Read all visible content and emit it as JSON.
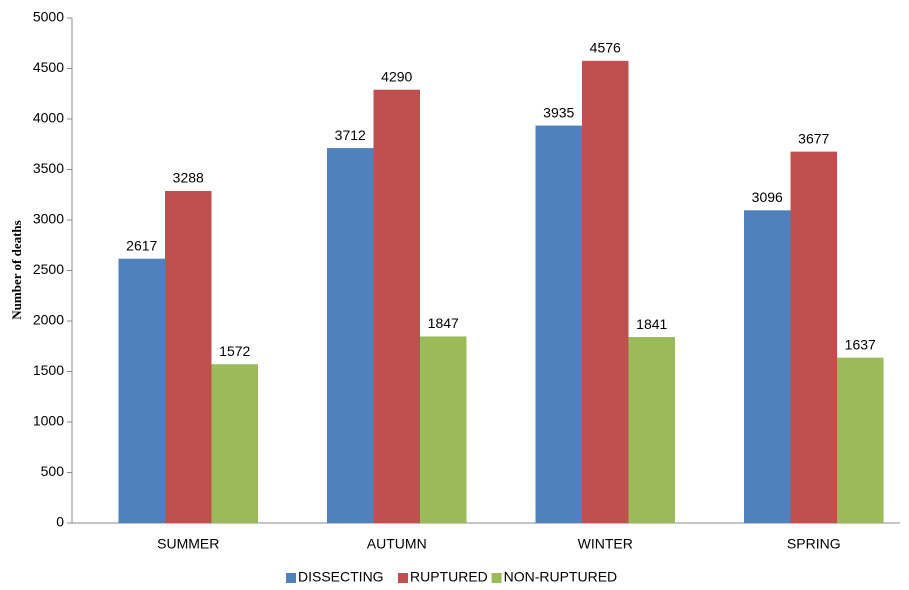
{
  "chart_data": {
    "type": "bar",
    "y_label": "Number of deaths",
    "categories": [
      "SUMMER",
      "AUTUMN",
      "WINTER",
      "SPRING"
    ],
    "series": [
      {
        "name": "DISSECTING",
        "color": "#4f81bd",
        "values": [
          2617,
          3712,
          3935,
          3096
        ]
      },
      {
        "name": "RUPTURED",
        "color": "#c0504d",
        "values": [
          3288,
          4290,
          4576,
          3677
        ]
      },
      {
        "name": "NON-RUPTURED",
        "color": "#9bbb59",
        "values": [
          1572,
          1847,
          1841,
          1637
        ]
      }
    ],
    "ylim": [
      0,
      5000
    ],
    "yticks": [
      0,
      500,
      1000,
      1500,
      2000,
      2500,
      3000,
      3500,
      4000,
      4500,
      5000
    ],
    "grid": false,
    "legend": "bottom"
  }
}
